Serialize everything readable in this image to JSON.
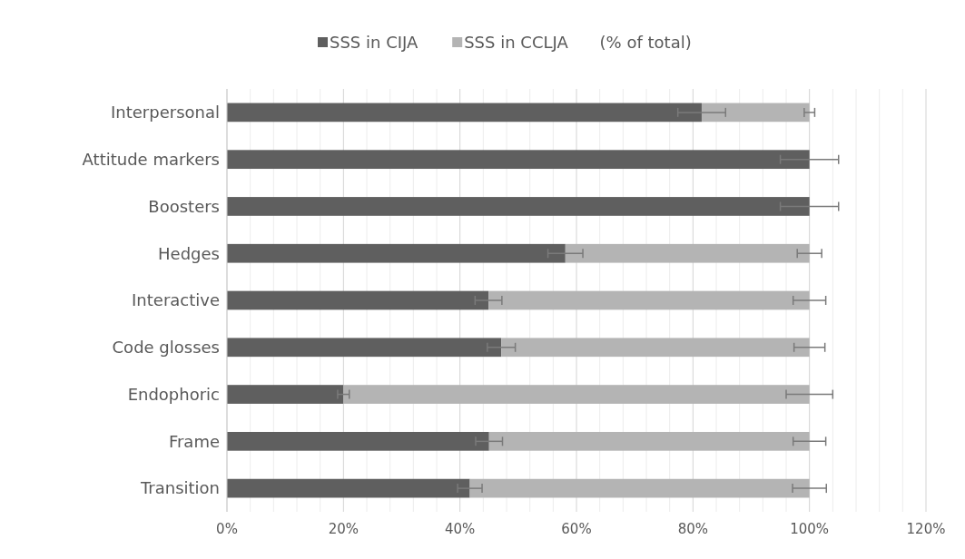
{
  "chart_data": {
    "type": "bar",
    "orientation": "horizontal",
    "stacked": true,
    "categories": [
      "Interpersonal",
      "Attitude markers",
      "Boosters",
      "Hedges",
      "Interactive",
      "Code glosses",
      "Endophoric",
      "Frame",
      "Transition"
    ],
    "series": [
      {
        "name": "SSS in CIJA",
        "color": "#5f5f5f",
        "values": [
          81.5,
          100,
          100,
          58.1,
          44.9,
          47.1,
          20,
          45,
          41.7
        ],
        "errors": [
          4.1,
          5,
          5,
          3,
          2.3,
          2.4,
          1,
          2.3,
          2.1
        ]
      },
      {
        "name": "SSS in CCLJA",
        "color": "#b4b4b4",
        "values": [
          18.5,
          0,
          0,
          41.9,
          55.1,
          52.9,
          80,
          55,
          58.3
        ],
        "errors": [
          0.9,
          null,
          null,
          2.1,
          2.8,
          2.65,
          4,
          2.8,
          2.9
        ]
      }
    ],
    "xlim": [
      0,
      120
    ],
    "xticks": [
      {
        "value": 0,
        "label": "0%"
      },
      {
        "value": 4,
        "label": null
      },
      {
        "value": 8,
        "label": null
      },
      {
        "value": 12,
        "label": null
      },
      {
        "value": 16,
        "label": null
      },
      {
        "value": 20,
        "label": "20%"
      },
      {
        "value": 24,
        "label": null
      },
      {
        "value": 28,
        "label": null
      },
      {
        "value": 32,
        "label": null
      },
      {
        "value": 36,
        "label": null
      },
      {
        "value": 40,
        "label": "40%"
      },
      {
        "value": 44,
        "label": null
      },
      {
        "value": 48,
        "label": null
      },
      {
        "value": 52,
        "label": null
      },
      {
        "value": 56,
        "label": null
      },
      {
        "value": 60,
        "label": "60%"
      },
      {
        "value": 64,
        "label": null
      },
      {
        "value": 68,
        "label": null
      },
      {
        "value": 72,
        "label": null
      },
      {
        "value": 76,
        "label": null
      },
      {
        "value": 80,
        "label": "80%"
      },
      {
        "value": 84,
        "label": null
      },
      {
        "value": 88,
        "label": null
      },
      {
        "value": 92,
        "label": null
      },
      {
        "value": 96,
        "label": null
      },
      {
        "value": 100,
        "label": "100%"
      },
      {
        "value": 104,
        "label": null
      },
      {
        "value": 108,
        "label": null
      },
      {
        "value": 112,
        "label": null
      },
      {
        "value": 116,
        "label": null
      },
      {
        "value": 120,
        "label": "120%"
      }
    ],
    "grid": "x",
    "legend": "top",
    "annotations": [
      "(% of total)"
    ]
  }
}
